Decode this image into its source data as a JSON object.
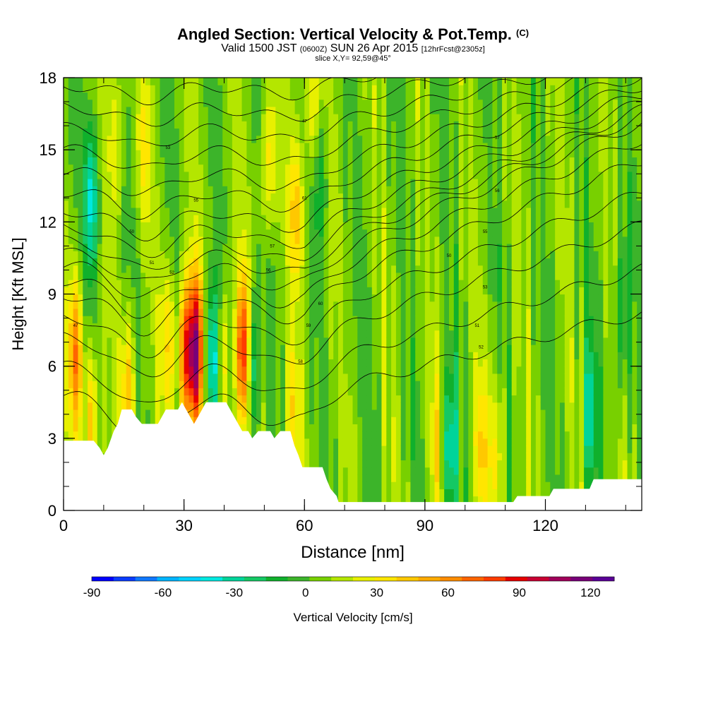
{
  "header": {
    "title": "Angled Section: Vertical Velocity & Pot.Temp.",
    "title_units": "(C)",
    "valid_prefix": "Valid 1500 JST",
    "valid_utc": "(0600Z)",
    "valid_date": "SUN 26 Apr 2015",
    "forecast": "[12hrFcst@2305z]",
    "slice": "slice X,Y= 92,59@45°"
  },
  "chart_data": {
    "type": "heatmap",
    "xlabel": "Distance [nm]",
    "ylabel": "Height [Kft MSL]",
    "xlim": [
      0,
      144
    ],
    "ylim": [
      0,
      18
    ],
    "x_ticks": [
      0,
      30,
      60,
      90,
      120
    ],
    "y_ticks": [
      0,
      3,
      6,
      9,
      12,
      15,
      18
    ],
    "terrain_kft": [
      [
        0,
        2.9
      ],
      [
        2.5,
        2.9
      ],
      [
        5,
        2.9
      ],
      [
        7.5,
        2.9
      ],
      [
        9,
        2.6
      ],
      [
        10,
        2.3
      ],
      [
        11,
        2.6
      ],
      [
        12.5,
        3.3
      ],
      [
        13.5,
        3.6
      ],
      [
        14.5,
        4.2
      ],
      [
        17,
        4.2
      ],
      [
        18,
        3.9
      ],
      [
        19.5,
        3.6
      ],
      [
        23.5,
        3.6
      ],
      [
        24.5,
        3.9
      ],
      [
        25.5,
        4.2
      ],
      [
        28.5,
        4.2
      ],
      [
        29.5,
        4.5
      ],
      [
        30.5,
        4.2
      ],
      [
        31.5,
        3.9
      ],
      [
        32.5,
        3.6
      ],
      [
        33.5,
        3.9
      ],
      [
        34.5,
        4.2
      ],
      [
        35.5,
        4.5
      ],
      [
        40.5,
        4.5
      ],
      [
        41.5,
        4.2
      ],
      [
        42.5,
        3.9
      ],
      [
        43.5,
        3.6
      ],
      [
        44.5,
        3.3
      ],
      [
        46,
        3.3
      ],
      [
        47,
        3.0
      ],
      [
        48.5,
        3.3
      ],
      [
        51.5,
        3.3
      ],
      [
        52.5,
        3.0
      ],
      [
        54,
        3.3
      ],
      [
        56.5,
        3.3
      ],
      [
        57.5,
        2.7
      ],
      [
        58.5,
        2.3
      ],
      [
        59.5,
        1.8
      ],
      [
        64.5,
        1.8
      ],
      [
        65.5,
        1.3
      ],
      [
        66.5,
        0.9
      ],
      [
        68,
        0.6
      ],
      [
        68.5,
        0.35
      ],
      [
        90,
        0.35
      ],
      [
        112,
        0.35
      ],
      [
        113,
        0.6
      ],
      [
        121,
        0.6
      ],
      [
        122,
        0.9
      ],
      [
        131,
        0.9
      ],
      [
        132,
        1.3
      ],
      [
        144,
        1.3
      ]
    ],
    "vertical_velocity_features": [
      {
        "x": 3,
        "z": 6.5,
        "w": 55
      },
      {
        "x": 7,
        "z": 3.5,
        "w": 40
      },
      {
        "x": 16,
        "z": 5.0,
        "w": 40
      },
      {
        "x": 13,
        "z": 15.5,
        "w": 25
      },
      {
        "x": 7,
        "z": 13.0,
        "w": -45
      },
      {
        "x": 20,
        "z": 15.0,
        "w": 20
      },
      {
        "x": 26,
        "z": 7.0,
        "w": 30
      },
      {
        "x": 30.5,
        "z": 6.5,
        "w": 75
      },
      {
        "x": 33,
        "z": 6.5,
        "w": 95
      },
      {
        "x": 37,
        "z": 6.0,
        "w": -55
      },
      {
        "x": 40,
        "z": 6.0,
        "w": 30
      },
      {
        "x": 45,
        "z": 6.5,
        "w": 100
      },
      {
        "x": 46.5,
        "z": 6.0,
        "w": -60
      },
      {
        "x": 51,
        "z": 14.5,
        "w": 30
      },
      {
        "x": 58,
        "z": 12.5,
        "w": 35
      },
      {
        "x": 57,
        "z": 4.0,
        "w": 25
      },
      {
        "x": 62,
        "z": 17.0,
        "w": 30
      },
      {
        "x": 64,
        "z": 14.0,
        "w": -20
      },
      {
        "x": 93,
        "z": 2.5,
        "w": 25
      },
      {
        "x": 96,
        "z": 2.5,
        "w": -45
      },
      {
        "x": 104,
        "z": 2.5,
        "w": 30
      },
      {
        "x": 108,
        "z": 2.5,
        "w": 25
      },
      {
        "x": 131,
        "z": 4.0,
        "w": -35
      },
      {
        "x": 139,
        "z": 8.0,
        "w": -25
      }
    ],
    "colorbar": {
      "label": "Vertical Velocity [cm/s]",
      "tick_labels": [
        "-90",
        "-60",
        "-30",
        "0",
        "30",
        "60",
        "90",
        "120"
      ],
      "tick_values": [
        -90,
        -60,
        -30,
        0,
        30,
        60,
        90,
        120
      ],
      "range": [
        -90,
        130
      ],
      "colors": [
        "#0000ff",
        "#0a3cff",
        "#0f78ff",
        "#00b4ff",
        "#00d2ff",
        "#00e8e0",
        "#00d49a",
        "#14c864",
        "#10b02c",
        "#3cb42a",
        "#78d000",
        "#b4e600",
        "#e8f000",
        "#ffe600",
        "#ffc800",
        "#ffaa00",
        "#ff8c00",
        "#ff6400",
        "#ff3c00",
        "#e60000",
        "#c80032",
        "#a0005a",
        "#780078",
        "#5a0096"
      ]
    },
    "contour_labels": [
      "47",
      "50",
      "51",
      "52",
      "53",
      "55",
      "56",
      "57",
      "58",
      "59",
      "60",
      "61"
    ]
  }
}
